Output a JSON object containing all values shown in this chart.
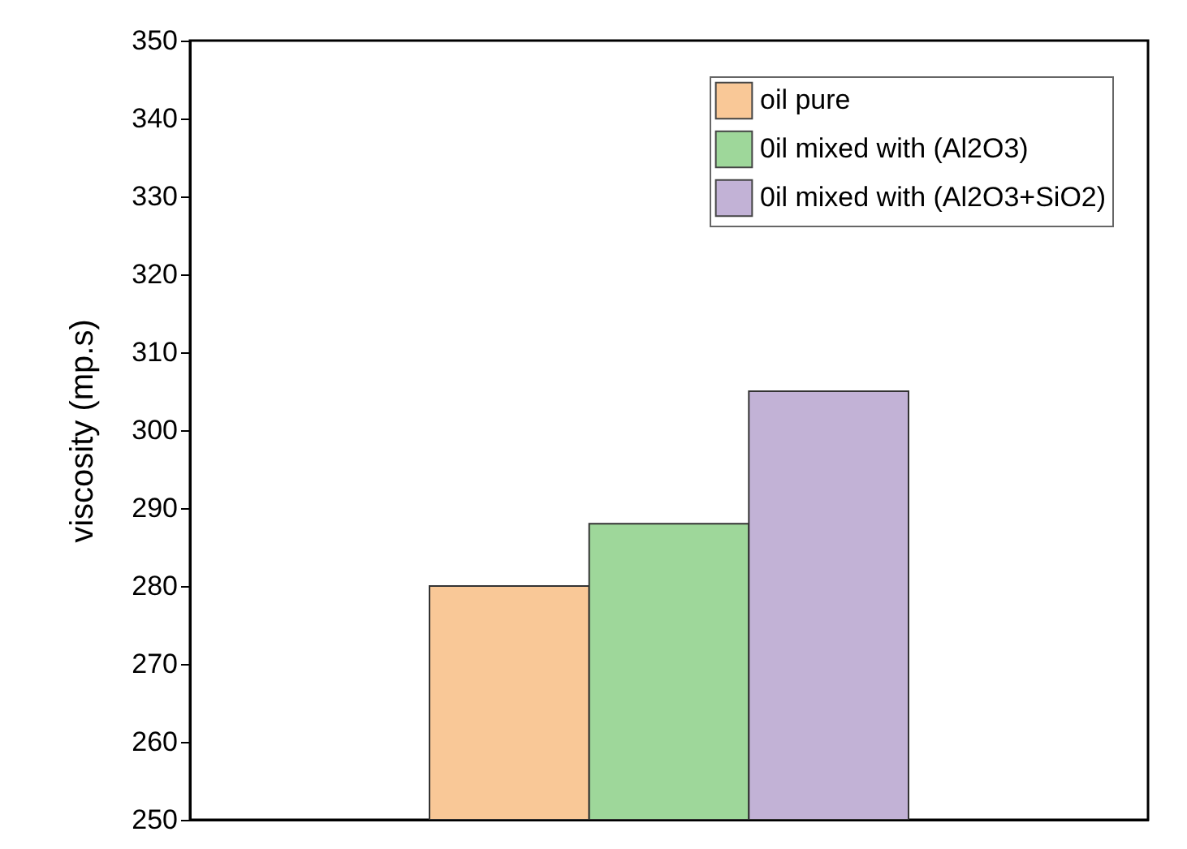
{
  "chart_data": {
    "type": "bar",
    "ylabel": "viscosity  (mp.s)",
    "categories": [
      null
    ],
    "series": [
      {
        "name": "oil pure",
        "color": "#f9c897",
        "values": [
          280
        ]
      },
      {
        "name": "0il mixed with (Al2O3)",
        "color": "#9ed79a",
        "values": [
          288
        ]
      },
      {
        "name": "0il mixed with (Al2O3+SiO2)",
        "color": "#c2b2d6",
        "values": [
          305
        ]
      }
    ],
    "ylim": [
      250,
      350
    ],
    "yticks": [
      250,
      260,
      270,
      280,
      290,
      300,
      310,
      320,
      330,
      340,
      350
    ],
    "legend": "top right",
    "tick_labels": "y"
  }
}
